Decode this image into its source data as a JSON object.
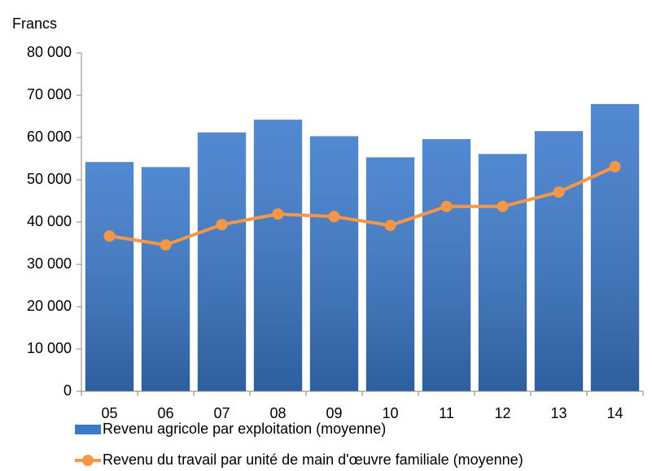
{
  "chart_data": {
    "type": "bar_line",
    "y_label": "Francs",
    "categories": [
      "05",
      "06",
      "07",
      "08",
      "09",
      "10",
      "11",
      "12",
      "13",
      "14"
    ],
    "series": [
      {
        "name": "Revenu agricole par exploitation (moyenne)",
        "type": "bar",
        "color": "#3a78c9",
        "values": [
          54200,
          53000,
          61200,
          64200,
          60300,
          55300,
          59600,
          56100,
          61500,
          67900
        ]
      },
      {
        "name": "Revenu du travail par unité de main d'œuvre familiale (moyenne)",
        "type": "line",
        "color": "#f79646",
        "values": [
          36700,
          34600,
          39400,
          41900,
          41300,
          39200,
          43700,
          43700,
          47100,
          53100
        ]
      }
    ],
    "ylim": [
      0,
      80000
    ],
    "yticks": [
      0,
      {
        "value": 10000,
        "label": "10 000"
      },
      {
        "value": 20000,
        "label": "20 000"
      },
      {
        "value": 30000,
        "label": "30 000"
      },
      {
        "value": 40000,
        "label": "40 000"
      },
      {
        "value": 50000,
        "label": "50 000"
      },
      {
        "value": 60000,
        "label": "60 000"
      },
      {
        "value": 70000,
        "label": "70 000"
      },
      {
        "value": 80000,
        "label": "80 000"
      }
    ],
    "grid": false,
    "legend": "bottom"
  }
}
